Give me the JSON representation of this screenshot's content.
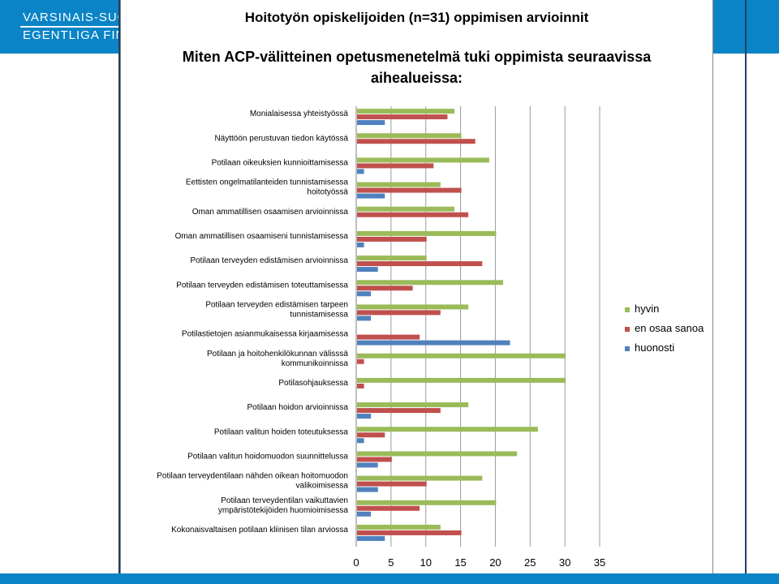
{
  "header": {
    "org_line1": "VARSINAIS-SUO",
    "org_line2": "EGENTLIGA FINL"
  },
  "slide": {
    "title": "Hoitotyön opiskelijoiden (n=31) oppimisen arvioinnit",
    "question_line1": "Miten ACP-välitteinen opetusmenetelmä tuki oppimista seuraavissa",
    "question_line2": "aihealueissa:"
  },
  "colors": {
    "hyvin": "#9bbb59",
    "en_osaa_sanoa": "#c0504d",
    "huonosti": "#4f81bd",
    "brand_blue": "#0a84c6"
  },
  "chart_data": {
    "type": "bar",
    "orientation": "horizontal",
    "categories": [
      "Monialaisessa yhteistyössä",
      "Näyttöön perustuvan tiedon käytössä",
      "Potilaan oikeuksien kunnioittamisessa",
      "Eettisten ongelmatilanteiden tunnistamisessa hoitotyössä",
      "Oman ammatillisen osaamisen arvioinnissa",
      "Oman ammatillisen osaamiseni tunnistamisessa",
      "Potilaan terveyden edistämisen arvioinnissa",
      "Potilaan terveyden edistämisen toteuttamisessa",
      "Potilaan terveyden edistämisen tarpeen tunnistamisessa",
      "Potilastietojen asianmukaisessa kirjaamisessa",
      "Potilaan ja hoitohenkilökunnan välisssä kommunikoinnissa",
      "Potilasohjauksessa",
      "Potilaan hoidon arvioinnissa",
      "Potilaan valitun hoiden toteutuksessa",
      "Potilaan valitun hoidomuodon suunnittelussa",
      "Potilaan terveydentilaan nähden oikean hoitomuodon valikoimisessa",
      "Potilaan terveydentilan vaikuttavien ympäristötekijöiden huomioimisessa",
      "Kokonaisvaltaisen potilaan kliinisen tilan arviossa"
    ],
    "series": [
      {
        "name": "hyvin",
        "values": [
          14,
          15,
          19,
          12,
          14,
          20,
          10,
          21,
          16,
          0,
          30,
          30,
          16,
          26,
          23,
          18,
          20,
          12
        ]
      },
      {
        "name": "en osaa sanoa",
        "values": [
          13,
          17,
          11,
          15,
          16,
          10,
          18,
          8,
          12,
          9,
          1,
          1,
          12,
          4,
          5,
          10,
          9,
          15
        ]
      },
      {
        "name": "huonosti",
        "values": [
          4,
          0,
          1,
          4,
          0,
          1,
          3,
          2,
          2,
          22,
          0,
          0,
          2,
          1,
          3,
          3,
          2,
          4
        ]
      }
    ],
    "xlim": [
      0,
      35
    ],
    "xticks": [
      0,
      5,
      10,
      15,
      20,
      25,
      30,
      35
    ],
    "legend": "right",
    "grid": true
  }
}
